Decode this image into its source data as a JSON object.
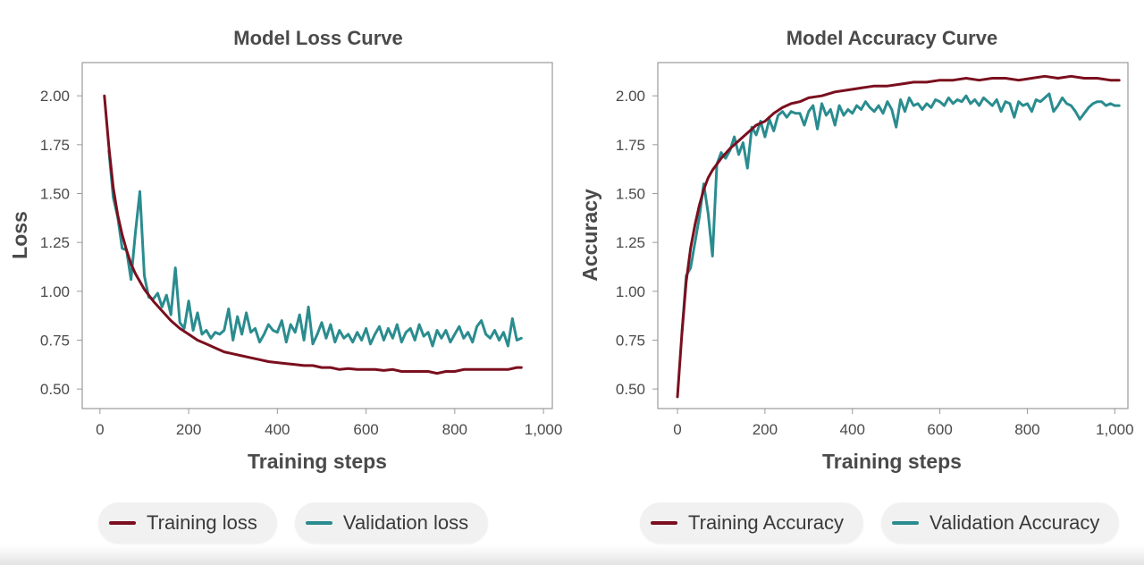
{
  "colors": {
    "training": "#7a0f1e",
    "validation": "#2a8c8f",
    "frame": "#9a9a9a",
    "text": "#4a4a4a"
  },
  "chart_data": [
    {
      "type": "line",
      "title": "Model Loss Curve",
      "xlabel": "Training steps",
      "ylabel": "Loss",
      "xlim": [
        -40,
        1020
      ],
      "ylim": [
        0.4,
        2.17
      ],
      "xticks": [
        0,
        200,
        400,
        600,
        800,
        1000
      ],
      "xtick_labels": [
        "0",
        "200",
        "400",
        "600",
        "800",
        "1,000"
      ],
      "yticks": [
        0.5,
        0.75,
        1.0,
        1.25,
        1.5,
        1.75,
        2.0
      ],
      "ytick_labels": [
        "0.50",
        "0.75",
        "1.00",
        "1.25",
        "1.50",
        "1.75",
        "2.00"
      ],
      "grid": false,
      "legend_placement": "bottom",
      "series": [
        {
          "name": "Training loss",
          "color": "#7a0f1e",
          "x": [
            10,
            20,
            30,
            40,
            50,
            60,
            70,
            80,
            90,
            100,
            120,
            140,
            160,
            180,
            200,
            220,
            240,
            260,
            280,
            300,
            320,
            340,
            360,
            380,
            400,
            420,
            440,
            460,
            480,
            500,
            520,
            540,
            560,
            580,
            600,
            620,
            640,
            660,
            680,
            700,
            720,
            740,
            760,
            780,
            800,
            820,
            840,
            860,
            880,
            900,
            920,
            940,
            950
          ],
          "y": [
            2.0,
            1.74,
            1.53,
            1.39,
            1.29,
            1.21,
            1.14,
            1.09,
            1.05,
            1.01,
            0.95,
            0.9,
            0.85,
            0.81,
            0.78,
            0.75,
            0.73,
            0.71,
            0.69,
            0.68,
            0.67,
            0.66,
            0.65,
            0.64,
            0.635,
            0.63,
            0.625,
            0.62,
            0.62,
            0.61,
            0.61,
            0.6,
            0.605,
            0.6,
            0.6,
            0.6,
            0.595,
            0.6,
            0.59,
            0.59,
            0.59,
            0.59,
            0.58,
            0.59,
            0.59,
            0.6,
            0.6,
            0.6,
            0.6,
            0.6,
            0.6,
            0.61,
            0.61
          ]
        },
        {
          "name": "Validation loss",
          "color": "#2a8c8f",
          "x": [
            20,
            30,
            40,
            50,
            60,
            70,
            80,
            90,
            100,
            110,
            120,
            130,
            140,
            150,
            160,
            170,
            180,
            190,
            200,
            210,
            220,
            230,
            240,
            250,
            260,
            270,
            280,
            290,
            300,
            310,
            320,
            330,
            340,
            350,
            360,
            370,
            380,
            390,
            400,
            410,
            420,
            430,
            440,
            450,
            460,
            470,
            480,
            490,
            500,
            510,
            520,
            530,
            540,
            550,
            560,
            570,
            580,
            590,
            600,
            610,
            620,
            630,
            640,
            650,
            660,
            670,
            680,
            690,
            700,
            710,
            720,
            730,
            740,
            750,
            760,
            770,
            780,
            790,
            800,
            810,
            820,
            830,
            840,
            850,
            860,
            870,
            880,
            890,
            900,
            910,
            920,
            930,
            940,
            950
          ],
          "y": [
            1.72,
            1.48,
            1.38,
            1.22,
            1.21,
            1.06,
            1.3,
            1.51,
            1.08,
            0.97,
            0.96,
            0.99,
            0.92,
            0.98,
            0.88,
            1.12,
            0.84,
            0.81,
            0.95,
            0.8,
            0.89,
            0.78,
            0.8,
            0.76,
            0.79,
            0.78,
            0.8,
            0.91,
            0.75,
            0.87,
            0.78,
            0.89,
            0.79,
            0.81,
            0.74,
            0.78,
            0.83,
            0.8,
            0.79,
            0.85,
            0.74,
            0.83,
            0.79,
            0.88,
            0.75,
            0.92,
            0.73,
            0.78,
            0.84,
            0.76,
            0.83,
            0.74,
            0.8,
            0.76,
            0.78,
            0.74,
            0.79,
            0.75,
            0.81,
            0.73,
            0.78,
            0.82,
            0.75,
            0.81,
            0.76,
            0.83,
            0.74,
            0.79,
            0.81,
            0.75,
            0.83,
            0.77,
            0.79,
            0.72,
            0.8,
            0.76,
            0.8,
            0.74,
            0.78,
            0.82,
            0.76,
            0.79,
            0.74,
            0.82,
            0.85,
            0.78,
            0.76,
            0.8,
            0.75,
            0.79,
            0.72,
            0.86,
            0.75,
            0.76
          ]
        }
      ]
    },
    {
      "type": "line",
      "title": "Model Accuracy Curve",
      "xlabel": "Training steps",
      "ylabel": "Accuracy",
      "xlim": [
        -45,
        1030
      ],
      "ylim": [
        0.4,
        2.17
      ],
      "xticks": [
        0,
        200,
        400,
        600,
        800,
        1000
      ],
      "xtick_labels": [
        "0",
        "200",
        "400",
        "600",
        "800",
        "1,000"
      ],
      "yticks": [
        0.5,
        0.75,
        1.0,
        1.25,
        1.5,
        1.75,
        2.0
      ],
      "ytick_labels": [
        "0.50",
        "0.75",
        "1.00",
        "1.25",
        "1.50",
        "1.75",
        "2.00"
      ],
      "grid": false,
      "legend_placement": "bottom",
      "series": [
        {
          "name": "Training Accuracy",
          "color": "#7a0f1e",
          "x": [
            0,
            10,
            20,
            30,
            40,
            50,
            60,
            70,
            80,
            90,
            100,
            120,
            140,
            160,
            180,
            200,
            220,
            240,
            260,
            280,
            300,
            330,
            360,
            390,
            420,
            450,
            480,
            510,
            540,
            570,
            600,
            630,
            660,
            690,
            720,
            750,
            780,
            810,
            840,
            870,
            900,
            930,
            960,
            990,
            1010
          ],
          "y": [
            0.46,
            0.78,
            1.05,
            1.22,
            1.34,
            1.44,
            1.52,
            1.58,
            1.62,
            1.65,
            1.68,
            1.73,
            1.77,
            1.81,
            1.85,
            1.87,
            1.91,
            1.94,
            1.96,
            1.97,
            1.99,
            2.0,
            2.02,
            2.03,
            2.04,
            2.05,
            2.05,
            2.06,
            2.07,
            2.07,
            2.08,
            2.08,
            2.09,
            2.08,
            2.09,
            2.09,
            2.08,
            2.09,
            2.1,
            2.09,
            2.1,
            2.09,
            2.09,
            2.08,
            2.08
          ]
        },
        {
          "name": "Validation Accuracy",
          "color": "#2a8c8f",
          "x": [
            10,
            20,
            30,
            40,
            50,
            60,
            70,
            80,
            90,
            100,
            110,
            120,
            130,
            140,
            150,
            160,
            170,
            180,
            190,
            200,
            210,
            220,
            230,
            240,
            250,
            260,
            270,
            280,
            290,
            300,
            310,
            320,
            330,
            340,
            350,
            360,
            370,
            380,
            390,
            400,
            410,
            420,
            430,
            440,
            450,
            460,
            470,
            480,
            490,
            500,
            510,
            520,
            530,
            540,
            550,
            560,
            570,
            580,
            590,
            600,
            610,
            620,
            630,
            640,
            650,
            660,
            670,
            680,
            690,
            700,
            710,
            720,
            730,
            740,
            750,
            760,
            770,
            780,
            790,
            800,
            810,
            820,
            830,
            840,
            850,
            860,
            870,
            880,
            890,
            900,
            910,
            920,
            930,
            940,
            950,
            960,
            970,
            980,
            990,
            1000,
            1010
          ],
          "y": [
            0.78,
            1.08,
            1.12,
            1.25,
            1.38,
            1.55,
            1.4,
            1.18,
            1.65,
            1.71,
            1.68,
            1.72,
            1.79,
            1.7,
            1.76,
            1.63,
            1.84,
            1.8,
            1.87,
            1.79,
            1.88,
            1.82,
            1.9,
            1.92,
            1.89,
            1.92,
            1.91,
            1.91,
            1.85,
            1.92,
            1.95,
            1.83,
            1.96,
            1.9,
            1.93,
            1.85,
            1.95,
            1.9,
            1.93,
            1.91,
            1.95,
            1.93,
            1.97,
            1.94,
            1.92,
            1.95,
            1.91,
            1.97,
            1.93,
            1.84,
            1.98,
            1.92,
            1.99,
            1.95,
            1.96,
            1.93,
            1.96,
            1.94,
            1.98,
            1.97,
            1.95,
            1.99,
            1.96,
            1.98,
            1.97,
            2.0,
            1.96,
            1.98,
            1.95,
            1.99,
            1.97,
            1.95,
            1.98,
            1.92,
            1.97,
            1.96,
            1.89,
            1.97,
            1.95,
            1.96,
            1.92,
            1.98,
            1.97,
            1.99,
            2.01,
            1.92,
            1.95,
            1.99,
            1.96,
            1.95,
            1.92,
            1.88,
            1.91,
            1.94,
            1.96,
            1.97,
            1.97,
            1.95,
            1.96,
            1.95,
            1.95
          ]
        }
      ]
    }
  ]
}
